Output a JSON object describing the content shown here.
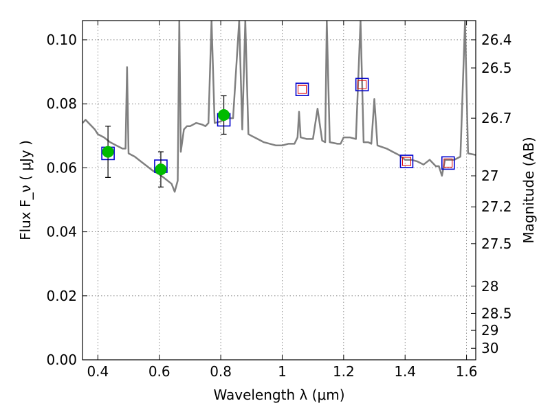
{
  "chart_data": {
    "type": "line",
    "xlabel": "Wavelength  λ (μm)",
    "ylabel": "Flux  F_ν  ( μJy )",
    "ylabel_right": "Magnitude (AB)",
    "xlim": [
      0.35,
      1.63
    ],
    "ylim": [
      0.0,
      0.106
    ],
    "xticks": [
      0.4,
      0.6,
      0.8,
      1.0,
      1.2,
      1.4,
      1.6
    ],
    "xtick_labels": [
      "0.4",
      "0.6",
      "0.8",
      "1",
      "1.2",
      "1.4",
      "1.6"
    ],
    "yticks": [
      0.0,
      0.02,
      0.04,
      0.06,
      0.08,
      0.1
    ],
    "ytick_labels": [
      "0.00",
      "0.02",
      "0.04",
      "0.06",
      "0.08",
      "0.10"
    ],
    "right_ticks": [
      {
        "label": "26.4",
        "flux": 0.1
      },
      {
        "label": "26.5",
        "flux": 0.0912
      },
      {
        "label": "26.7",
        "flux": 0.0755
      },
      {
        "label": "27",
        "flux": 0.0575
      },
      {
        "label": "27.2",
        "flux": 0.0478
      },
      {
        "label": "27.5",
        "flux": 0.0363
      },
      {
        "label": "28",
        "flux": 0.023
      },
      {
        "label": "28.5",
        "flux": 0.0145
      },
      {
        "label": "29",
        "flux": 0.0092
      },
      {
        "label": "30",
        "flux": 0.0036
      }
    ],
    "grid": true,
    "series": [
      {
        "kind": "spectrum",
        "color": "#808080",
        "points": [
          [
            0.35,
            0.074
          ],
          [
            0.36,
            0.075
          ],
          [
            0.37,
            0.074
          ],
          [
            0.38,
            0.073
          ],
          [
            0.39,
            0.072
          ],
          [
            0.4,
            0.0705
          ],
          [
            0.42,
            0.0695
          ],
          [
            0.44,
            0.068
          ],
          [
            0.46,
            0.067
          ],
          [
            0.48,
            0.066
          ],
          [
            0.49,
            0.066
          ],
          [
            0.495,
            0.0915
          ],
          [
            0.5,
            0.0645
          ],
          [
            0.52,
            0.0635
          ],
          [
            0.54,
            0.062
          ],
          [
            0.56,
            0.0605
          ],
          [
            0.58,
            0.059
          ],
          [
            0.6,
            0.058
          ],
          [
            0.62,
            0.0565
          ],
          [
            0.64,
            0.055
          ],
          [
            0.65,
            0.0525
          ],
          [
            0.66,
            0.056
          ],
          [
            0.665,
            0.106
          ],
          [
            0.67,
            0.065
          ],
          [
            0.68,
            0.072
          ],
          [
            0.69,
            0.073
          ],
          [
            0.7,
            0.073
          ],
          [
            0.72,
            0.074
          ],
          [
            0.74,
            0.0735
          ],
          [
            0.75,
            0.073
          ],
          [
            0.76,
            0.074
          ],
          [
            0.77,
            0.106
          ],
          [
            0.78,
            0.074
          ],
          [
            0.8,
            0.0745
          ],
          [
            0.82,
            0.0755
          ],
          [
            0.84,
            0.0755
          ],
          [
            0.86,
            0.106
          ],
          [
            0.87,
            0.072
          ],
          [
            0.88,
            0.106
          ],
          [
            0.89,
            0.0705
          ],
          [
            0.9,
            0.07
          ],
          [
            0.92,
            0.069
          ],
          [
            0.94,
            0.068
          ],
          [
            0.96,
            0.0675
          ],
          [
            0.98,
            0.067
          ],
          [
            1.0,
            0.067
          ],
          [
            1.02,
            0.0675
          ],
          [
            1.04,
            0.0675
          ],
          [
            1.05,
            0.0695
          ],
          [
            1.055,
            0.0775
          ],
          [
            1.06,
            0.0695
          ],
          [
            1.08,
            0.069
          ],
          [
            1.1,
            0.069
          ],
          [
            1.115,
            0.0785
          ],
          [
            1.13,
            0.0685
          ],
          [
            1.14,
            0.068
          ],
          [
            1.145,
            0.106
          ],
          [
            1.155,
            0.068
          ],
          [
            1.18,
            0.0675
          ],
          [
            1.19,
            0.0675
          ],
          [
            1.2,
            0.0695
          ],
          [
            1.22,
            0.0695
          ],
          [
            1.24,
            0.069
          ],
          [
            1.255,
            0.106
          ],
          [
            1.265,
            0.068
          ],
          [
            1.28,
            0.068
          ],
          [
            1.29,
            0.0675
          ],
          [
            1.3,
            0.0815
          ],
          [
            1.31,
            0.067
          ],
          [
            1.34,
            0.066
          ],
          [
            1.36,
            0.065
          ],
          [
            1.38,
            0.064
          ],
          [
            1.4,
            0.0625
          ],
          [
            1.42,
            0.0625
          ],
          [
            1.44,
            0.062
          ],
          [
            1.46,
            0.061
          ],
          [
            1.48,
            0.0625
          ],
          [
            1.5,
            0.0605
          ],
          [
            1.51,
            0.0605
          ],
          [
            1.52,
            0.0575
          ],
          [
            1.53,
            0.0625
          ],
          [
            1.56,
            0.0625
          ],
          [
            1.58,
            0.0635
          ],
          [
            1.595,
            0.106
          ],
          [
            1.605,
            0.0645
          ],
          [
            1.63,
            0.064
          ]
        ]
      },
      {
        "kind": "model_box",
        "color": "#0000cc",
        "x": [
          0.433,
          0.605,
          0.81,
          1.065,
          1.26,
          1.405,
          1.54
        ],
        "y": [
          0.0645,
          0.0605,
          0.075,
          0.0845,
          0.086,
          0.062,
          0.0615
        ]
      },
      {
        "kind": "observed_small_box",
        "color": "#dd0000",
        "x": [
          1.065,
          1.26,
          1.405,
          1.54
        ],
        "y": [
          0.0845,
          0.086,
          0.062,
          0.0615
        ]
      },
      {
        "kind": "observed_point",
        "color": "#00bb00",
        "x": [
          0.433,
          0.605,
          0.81
        ],
        "y": [
          0.065,
          0.0595,
          0.0765
        ],
        "err": [
          0.008,
          0.0055,
          0.006
        ]
      }
    ]
  }
}
